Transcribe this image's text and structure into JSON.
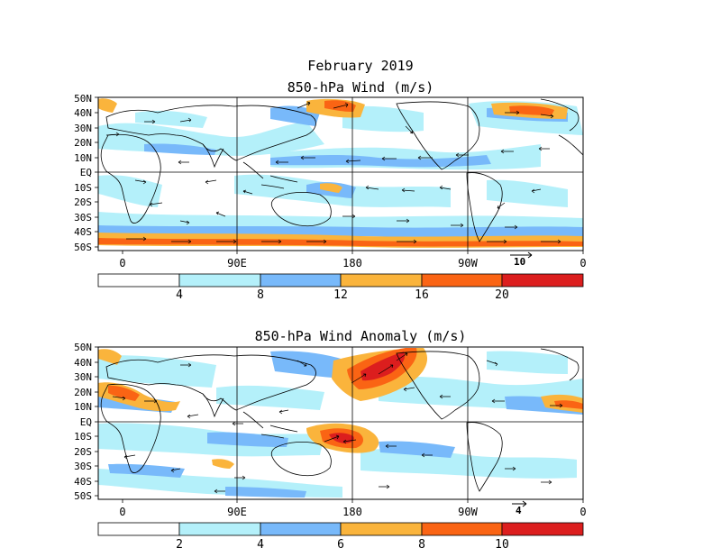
{
  "titles": {
    "line1": "February 2019",
    "line2": "850-hPa Wind (m/s)",
    "line3": "850-hPa Wind Anomaly (m/s)"
  },
  "lat_labels": [
    "50N",
    "40N",
    "30N",
    "20N",
    "10N",
    "EQ",
    "10S",
    "20S",
    "30S",
    "40S",
    "50S"
  ],
  "lon_labels": [
    "0",
    "90E",
    "180",
    "90W",
    "0"
  ],
  "panel1": {
    "ref_vector": "10",
    "colorbar": {
      "colors": [
        "#ffffff",
        "#b4f0fa",
        "#78b9fa",
        "#fab43c",
        "#fa6414",
        "#dc1e1e"
      ],
      "labels": [
        "4",
        "8",
        "12",
        "16",
        "20"
      ]
    }
  },
  "panel2": {
    "ref_vector": "4",
    "colorbar": {
      "colors": [
        "#ffffff",
        "#b4f0fa",
        "#78b9fa",
        "#fab43c",
        "#fa6414",
        "#dc1e1e"
      ],
      "labels": [
        "2",
        "4",
        "6",
        "8",
        "10"
      ]
    }
  },
  "colors": {
    "light_blue": "#b4f0fa",
    "mid_blue": "#78b9fa",
    "orange": "#fab43c",
    "dark_orange": "#fa6414",
    "red": "#dc1e1e"
  }
}
